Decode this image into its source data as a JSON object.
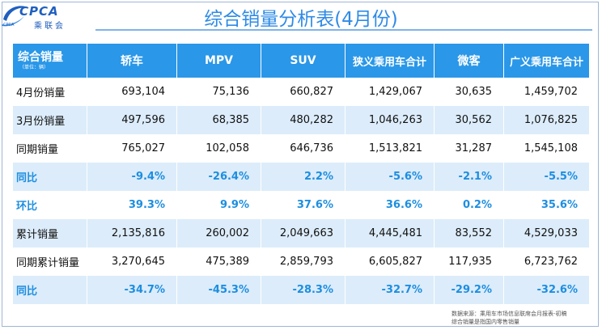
{
  "logo": {
    "text": "CPCA",
    "sub": "乘联会",
    "tiny": "CPCA"
  },
  "title": "综合销量分析表(4月份)",
  "table": {
    "corner_label": "综合销量",
    "corner_unit": "（单位：辆）",
    "columns": [
      "轿车",
      "MPV",
      "SUV",
      "狭义乘用车合计",
      "微客",
      "广义乘用车合计"
    ],
    "rows": [
      {
        "label": "4月份销量",
        "values": [
          "693,104",
          "75,136",
          "660,827",
          "1,429,067",
          "30,635",
          "1,459,702"
        ],
        "kind": "normal"
      },
      {
        "label": "3月份销量",
        "values": [
          "497,596",
          "68,385",
          "480,282",
          "1,046,263",
          "30,562",
          "1,076,825"
        ],
        "kind": "normal"
      },
      {
        "label": "同期销量",
        "values": [
          "765,027",
          "102,058",
          "646,736",
          "1,513,821",
          "31,287",
          "1,545,108"
        ],
        "kind": "normal"
      },
      {
        "label": "同比",
        "values": [
          "-9.4%",
          "-26.4%",
          "2.2%",
          "-5.6%",
          "-2.1%",
          "-5.5%"
        ],
        "kind": "rate"
      },
      {
        "label": "环比",
        "values": [
          "39.3%",
          "9.9%",
          "37.6%",
          "36.6%",
          "0.2%",
          "35.6%"
        ],
        "kind": "rate"
      },
      {
        "label": "累计销量",
        "values": [
          "2,135,816",
          "260,002",
          "2,049,663",
          "4,445,481",
          "83,552",
          "4,529,033"
        ],
        "kind": "normal"
      },
      {
        "label": "同期累计销量",
        "values": [
          "3,270,645",
          "475,389",
          "2,859,793",
          "6,605,827",
          "117,935",
          "6,723,762"
        ],
        "kind": "normal"
      },
      {
        "label": "同比",
        "values": [
          "-34.7%",
          "-45.3%",
          "-28.3%",
          "-32.7%",
          "-29.2%",
          "-32.6%"
        ],
        "kind": "rate"
      }
    ]
  },
  "source": {
    "line1": "数据来源：乘用车市场信息联席会月报表-初稿",
    "line2": "综合销量是指国内零售销量"
  },
  "colors": {
    "header_bg": "#2a97e8",
    "band_bg": "#dcecfa",
    "rate_text": "#1d8ee0",
    "title": "#2e8be6"
  }
}
